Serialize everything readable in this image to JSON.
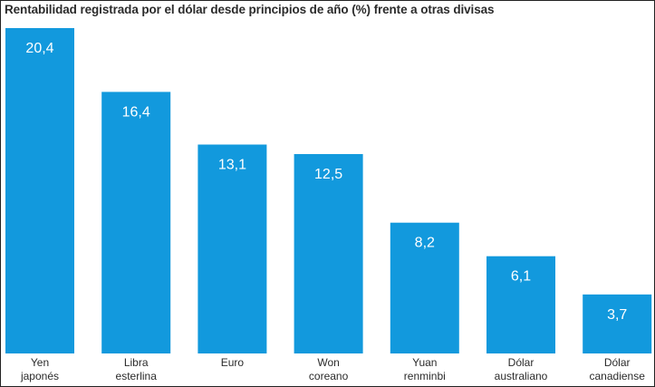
{
  "chart_data": {
    "type": "bar",
    "title": "Rentabilidad registrada por el dólar desde principios de año (%) frente a otras divisas",
    "categories": [
      [
        "Yen",
        "japonés"
      ],
      [
        "Libra",
        "esterlina"
      ],
      [
        "Euro"
      ],
      [
        "Won",
        "coreano"
      ],
      [
        "Yuan",
        "renminbi"
      ],
      [
        "Dólar",
        "australiano"
      ],
      [
        "Dólar",
        "canadiense"
      ]
    ],
    "values": [
      20.4,
      16.4,
      13.1,
      12.5,
      8.2,
      6.1,
      3.7
    ],
    "value_labels": [
      "20,4",
      "16,4",
      "13,1",
      "12,5",
      "8,2",
      "6,1",
      "3,7"
    ],
    "ylim": [
      0,
      20.4
    ],
    "bar_color": "#1299dd",
    "grid": false,
    "legend": "none"
  }
}
